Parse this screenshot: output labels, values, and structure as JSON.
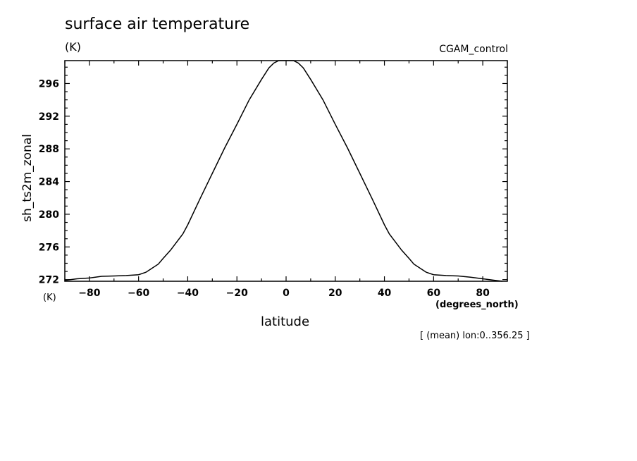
{
  "chart_data": {
    "type": "line",
    "title": "surface air temperature",
    "units": "(K)",
    "run_label": "CGAM_control",
    "ylabel": "sh_ts2m_zonal",
    "ylabel_units": "(K)",
    "xlabel": "latitude",
    "xlabel_units": "(degrees_north)",
    "footnote": "[ (mean) lon:0..356.25 ]",
    "xlim": [
      -90,
      90
    ],
    "ylim": [
      271.8,
      298.8
    ],
    "x_ticks": [
      -80,
      -60,
      -40,
      -20,
      0,
      20,
      40,
      60,
      80
    ],
    "y_ticks": [
      272,
      276,
      280,
      284,
      288,
      292,
      296
    ],
    "grid": false,
    "series": [
      {
        "x": [
          -90,
          -85,
          -80,
          -75,
          -70,
          -65,
          -60,
          -57,
          -55,
          -52,
          -50,
          -47,
          -45,
          -42,
          -40,
          -35,
          -30,
          -25,
          -20,
          -15,
          -10,
          -7,
          -5,
          -3,
          0,
          3,
          5,
          7,
          10,
          15,
          20,
          25,
          30,
          35,
          40,
          42,
          45,
          47,
          50,
          52,
          55,
          57,
          60,
          65,
          70,
          75,
          80,
          85,
          88
        ],
        "y": [
          271.9,
          272.1,
          272.2,
          272.4,
          272.45,
          272.5,
          272.6,
          272.9,
          273.3,
          273.9,
          274.6,
          275.6,
          276.4,
          277.6,
          278.7,
          281.9,
          285.0,
          288.1,
          291.0,
          294.0,
          296.5,
          297.9,
          298.5,
          298.8,
          298.8,
          298.8,
          298.5,
          297.9,
          296.5,
          294.0,
          291.0,
          288.1,
          285.0,
          281.9,
          278.7,
          277.6,
          276.4,
          275.6,
          274.6,
          273.9,
          273.3,
          272.9,
          272.6,
          272.5,
          272.45,
          272.3,
          272.1,
          271.9,
          271.8
        ]
      }
    ]
  }
}
